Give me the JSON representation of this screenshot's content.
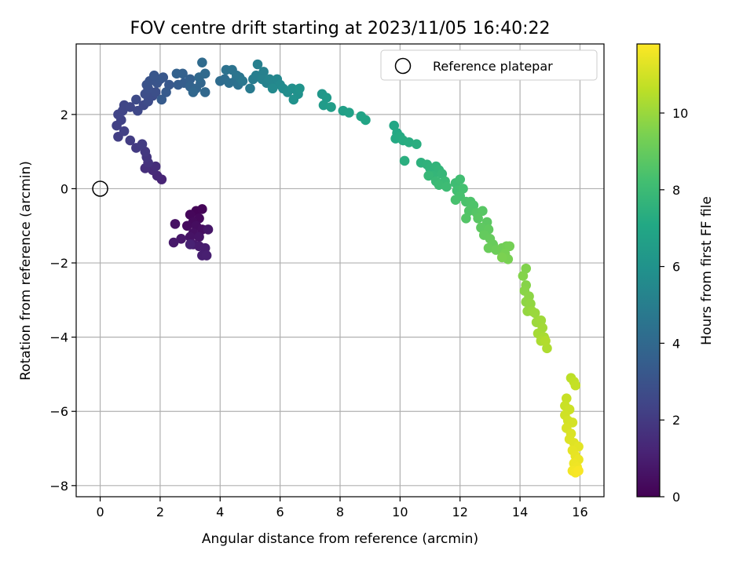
{
  "chart_data": {
    "type": "scatter",
    "title": "FOV centre drift starting at 2023/11/05 16:40:22",
    "xlabel": "Angular distance from reference (arcmin)",
    "ylabel": "Rotation from reference (arcmin)",
    "xlim": [
      -0.8,
      16.8
    ],
    "ylim": [
      -8.3,
      3.9
    ],
    "xticks": [
      0,
      2,
      4,
      6,
      8,
      10,
      12,
      14,
      16
    ],
    "yticks": [
      -8,
      -6,
      -4,
      -2,
      0,
      2
    ],
    "grid": true,
    "legend": {
      "position": "top-right",
      "entries": [
        {
          "label": "Reference platepar",
          "marker": "open-circle"
        }
      ]
    },
    "reference_point": {
      "x": 0,
      "y": 0
    },
    "colorbar": {
      "label": "Hours from first FF file",
      "colormap": "viridis",
      "range": [
        0,
        11.8
      ],
      "ticks": [
        0,
        2,
        4,
        6,
        8,
        10
      ]
    },
    "points": [
      {
        "x": 3.2,
        "y": -0.6,
        "t": 0.1
      },
      {
        "x": 3.4,
        "y": -0.55,
        "t": 0.15
      },
      {
        "x": 3.0,
        "y": -0.7,
        "t": 0.2
      },
      {
        "x": 3.3,
        "y": -0.8,
        "t": 0.25
      },
      {
        "x": 3.1,
        "y": -0.9,
        "t": 0.3
      },
      {
        "x": 2.9,
        "y": -1.0,
        "t": 0.35
      },
      {
        "x": 3.2,
        "y": -1.0,
        "t": 0.4
      },
      {
        "x": 3.4,
        "y": -1.1,
        "t": 0.45
      },
      {
        "x": 3.1,
        "y": -1.2,
        "t": 0.5
      },
      {
        "x": 2.5,
        "y": -0.95,
        "t": 0.55
      },
      {
        "x": 3.0,
        "y": -1.3,
        "t": 0.6
      },
      {
        "x": 3.3,
        "y": -1.3,
        "t": 0.65
      },
      {
        "x": 3.6,
        "y": -1.1,
        "t": 0.7
      },
      {
        "x": 2.7,
        "y": -1.35,
        "t": 0.75
      },
      {
        "x": 2.45,
        "y": -1.45,
        "t": 0.8
      },
      {
        "x": 3.1,
        "y": -1.5,
        "t": 0.85
      },
      {
        "x": 3.3,
        "y": -1.55,
        "t": 0.9
      },
      {
        "x": 3.5,
        "y": -1.6,
        "t": 0.95
      },
      {
        "x": 3.4,
        "y": -1.8,
        "t": 1.0
      },
      {
        "x": 3.55,
        "y": -1.8,
        "t": 1.05
      },
      {
        "x": 3.0,
        "y": -1.5,
        "t": 1.1
      },
      {
        "x": 2.05,
        "y": 0.25,
        "t": 1.2
      },
      {
        "x": 1.9,
        "y": 0.35,
        "t": 1.3
      },
      {
        "x": 1.75,
        "y": 0.5,
        "t": 1.4
      },
      {
        "x": 1.85,
        "y": 0.6,
        "t": 1.5
      },
      {
        "x": 1.5,
        "y": 0.55,
        "t": 1.6
      },
      {
        "x": 1.6,
        "y": 0.7,
        "t": 1.7
      },
      {
        "x": 1.55,
        "y": 0.85,
        "t": 1.8
      },
      {
        "x": 1.5,
        "y": 1.0,
        "t": 1.9
      },
      {
        "x": 1.2,
        "y": 1.1,
        "t": 2.0
      },
      {
        "x": 1.4,
        "y": 1.2,
        "t": 2.05
      },
      {
        "x": 1.0,
        "y": 1.3,
        "t": 2.1
      },
      {
        "x": 0.6,
        "y": 1.4,
        "t": 2.15
      },
      {
        "x": 0.8,
        "y": 1.55,
        "t": 2.2
      },
      {
        "x": 0.55,
        "y": 1.7,
        "t": 2.25
      },
      {
        "x": 0.7,
        "y": 1.85,
        "t": 2.3
      },
      {
        "x": 0.6,
        "y": 2.0,
        "t": 2.35
      },
      {
        "x": 0.75,
        "y": 2.1,
        "t": 2.4
      },
      {
        "x": 0.8,
        "y": 2.25,
        "t": 2.45
      },
      {
        "x": 1.0,
        "y": 2.2,
        "t": 2.5
      },
      {
        "x": 1.25,
        "y": 2.1,
        "t": 2.55
      },
      {
        "x": 1.45,
        "y": 2.25,
        "t": 2.6
      },
      {
        "x": 1.2,
        "y": 2.4,
        "t": 2.65
      },
      {
        "x": 1.6,
        "y": 2.35,
        "t": 2.7
      },
      {
        "x": 1.75,
        "y": 2.5,
        "t": 2.75
      },
      {
        "x": 1.5,
        "y": 2.55,
        "t": 2.8
      },
      {
        "x": 1.85,
        "y": 2.6,
        "t": 2.85
      },
      {
        "x": 1.6,
        "y": 2.7,
        "t": 2.9
      },
      {
        "x": 1.55,
        "y": 2.8,
        "t": 2.95
      },
      {
        "x": 1.65,
        "y": 2.9,
        "t": 3.0
      },
      {
        "x": 1.9,
        "y": 2.85,
        "t": 3.05
      },
      {
        "x": 2.0,
        "y": 2.95,
        "t": 3.1
      },
      {
        "x": 1.8,
        "y": 3.05,
        "t": 3.15
      },
      {
        "x": 2.1,
        "y": 3.0,
        "t": 3.2
      },
      {
        "x": 2.3,
        "y": 2.8,
        "t": 3.25
      },
      {
        "x": 2.2,
        "y": 2.6,
        "t": 3.3
      },
      {
        "x": 2.05,
        "y": 2.4,
        "t": 3.35
      },
      {
        "x": 2.6,
        "y": 2.8,
        "t": 3.4
      },
      {
        "x": 2.8,
        "y": 2.85,
        "t": 3.5
      },
      {
        "x": 3.0,
        "y": 2.95,
        "t": 3.6
      },
      {
        "x": 2.75,
        "y": 3.1,
        "t": 3.65
      },
      {
        "x": 2.55,
        "y": 3.1,
        "t": 3.7
      },
      {
        "x": 3.0,
        "y": 2.75,
        "t": 3.75
      },
      {
        "x": 3.2,
        "y": 2.7,
        "t": 3.8
      },
      {
        "x": 3.35,
        "y": 2.85,
        "t": 3.85
      },
      {
        "x": 3.1,
        "y": 2.6,
        "t": 3.9
      },
      {
        "x": 3.5,
        "y": 2.6,
        "t": 3.95
      },
      {
        "x": 3.3,
        "y": 3.0,
        "t": 4.0
      },
      {
        "x": 3.5,
        "y": 3.1,
        "t": 4.05
      },
      {
        "x": 3.4,
        "y": 3.4,
        "t": 4.1
      },
      {
        "x": 4.0,
        "y": 2.9,
        "t": 4.15
      },
      {
        "x": 4.15,
        "y": 2.95,
        "t": 4.2
      },
      {
        "x": 4.3,
        "y": 2.85,
        "t": 4.3
      },
      {
        "x": 4.5,
        "y": 2.9,
        "t": 4.35
      },
      {
        "x": 4.6,
        "y": 2.8,
        "t": 4.4
      },
      {
        "x": 4.2,
        "y": 3.2,
        "t": 4.45
      },
      {
        "x": 4.4,
        "y": 3.2,
        "t": 4.5
      },
      {
        "x": 4.55,
        "y": 3.05,
        "t": 4.55
      },
      {
        "x": 4.65,
        "y": 3.0,
        "t": 4.6
      },
      {
        "x": 4.75,
        "y": 2.9,
        "t": 4.65
      },
      {
        "x": 5.0,
        "y": 2.7,
        "t": 4.8
      },
      {
        "x": 5.1,
        "y": 2.95,
        "t": 4.9
      },
      {
        "x": 5.2,
        "y": 3.05,
        "t": 5.0
      },
      {
        "x": 5.25,
        "y": 3.35,
        "t": 5.05
      },
      {
        "x": 5.45,
        "y": 3.15,
        "t": 5.1
      },
      {
        "x": 5.4,
        "y": 2.95,
        "t": 5.15
      },
      {
        "x": 5.55,
        "y": 2.85,
        "t": 5.2
      },
      {
        "x": 5.65,
        "y": 2.95,
        "t": 5.3
      },
      {
        "x": 5.8,
        "y": 2.9,
        "t": 5.4
      },
      {
        "x": 5.9,
        "y": 2.95,
        "t": 5.45
      },
      {
        "x": 6.0,
        "y": 2.8,
        "t": 5.5
      },
      {
        "x": 5.75,
        "y": 2.7,
        "t": 5.55
      },
      {
        "x": 6.1,
        "y": 2.7,
        "t": 5.6
      },
      {
        "x": 6.25,
        "y": 2.6,
        "t": 5.7
      },
      {
        "x": 6.4,
        "y": 2.7,
        "t": 5.8
      },
      {
        "x": 6.55,
        "y": 2.65,
        "t": 5.85
      },
      {
        "x": 6.6,
        "y": 2.55,
        "t": 5.9
      },
      {
        "x": 6.45,
        "y": 2.4,
        "t": 5.95
      },
      {
        "x": 6.65,
        "y": 2.7,
        "t": 6.0
      },
      {
        "x": 7.4,
        "y": 2.55,
        "t": 6.2
      },
      {
        "x": 7.55,
        "y": 2.45,
        "t": 6.3
      },
      {
        "x": 7.45,
        "y": 2.25,
        "t": 6.4
      },
      {
        "x": 7.7,
        "y": 2.2,
        "t": 6.5
      },
      {
        "x": 8.1,
        "y": 2.1,
        "t": 6.6
      },
      {
        "x": 8.3,
        "y": 2.05,
        "t": 6.7
      },
      {
        "x": 8.7,
        "y": 1.95,
        "t": 6.8
      },
      {
        "x": 8.85,
        "y": 1.85,
        "t": 6.9
      },
      {
        "x": 9.8,
        "y": 1.7,
        "t": 7.0
      },
      {
        "x": 9.9,
        "y": 1.5,
        "t": 7.1
      },
      {
        "x": 9.85,
        "y": 1.35,
        "t": 7.15
      },
      {
        "x": 10.0,
        "y": 1.4,
        "t": 7.2
      },
      {
        "x": 10.1,
        "y": 1.3,
        "t": 7.25
      },
      {
        "x": 10.3,
        "y": 1.25,
        "t": 7.3
      },
      {
        "x": 10.55,
        "y": 1.2,
        "t": 7.35
      },
      {
        "x": 10.15,
        "y": 0.75,
        "t": 7.4
      },
      {
        "x": 10.7,
        "y": 0.7,
        "t": 7.5
      },
      {
        "x": 10.9,
        "y": 0.65,
        "t": 7.55
      },
      {
        "x": 11.0,
        "y": 0.55,
        "t": 7.6
      },
      {
        "x": 11.2,
        "y": 0.6,
        "t": 7.65
      },
      {
        "x": 11.3,
        "y": 0.5,
        "t": 7.7
      },
      {
        "x": 11.1,
        "y": 0.35,
        "t": 7.75
      },
      {
        "x": 11.4,
        "y": 0.4,
        "t": 7.8
      },
      {
        "x": 10.95,
        "y": 0.35,
        "t": 7.85
      },
      {
        "x": 11.2,
        "y": 0.2,
        "t": 7.9
      },
      {
        "x": 11.5,
        "y": 0.2,
        "t": 7.95
      },
      {
        "x": 11.3,
        "y": 0.1,
        "t": 8.0
      },
      {
        "x": 11.55,
        "y": 0.05,
        "t": 8.05
      },
      {
        "x": 11.85,
        "y": 0.15,
        "t": 8.1
      },
      {
        "x": 12.0,
        "y": 0.25,
        "t": 8.15
      },
      {
        "x": 11.9,
        "y": -0.05,
        "t": 8.2
      },
      {
        "x": 12.1,
        "y": 0.0,
        "t": 8.25
      },
      {
        "x": 12.0,
        "y": -0.2,
        "t": 8.3
      },
      {
        "x": 11.85,
        "y": -0.3,
        "t": 8.35
      },
      {
        "x": 12.2,
        "y": -0.35,
        "t": 8.4
      },
      {
        "x": 12.35,
        "y": -0.35,
        "t": 8.45
      },
      {
        "x": 12.45,
        "y": -0.45,
        "t": 8.5
      },
      {
        "x": 12.3,
        "y": -0.6,
        "t": 8.55
      },
      {
        "x": 12.2,
        "y": -0.8,
        "t": 8.6
      },
      {
        "x": 12.55,
        "y": -0.65,
        "t": 8.65
      },
      {
        "x": 12.75,
        "y": -0.6,
        "t": 8.7
      },
      {
        "x": 12.6,
        "y": -0.8,
        "t": 8.75
      },
      {
        "x": 12.9,
        "y": -0.9,
        "t": 8.8
      },
      {
        "x": 12.7,
        "y": -1.05,
        "t": 8.85
      },
      {
        "x": 12.95,
        "y": -1.1,
        "t": 8.9
      },
      {
        "x": 12.8,
        "y": -1.25,
        "t": 8.95
      },
      {
        "x": 13.0,
        "y": -1.35,
        "t": 9.0
      },
      {
        "x": 13.1,
        "y": -1.5,
        "t": 9.05
      },
      {
        "x": 12.95,
        "y": -1.6,
        "t": 9.1
      },
      {
        "x": 13.2,
        "y": -1.65,
        "t": 9.15
      },
      {
        "x": 13.4,
        "y": -1.6,
        "t": 9.2
      },
      {
        "x": 13.55,
        "y": -1.55,
        "t": 9.25
      },
      {
        "x": 13.65,
        "y": -1.55,
        "t": 9.3
      },
      {
        "x": 13.5,
        "y": -1.75,
        "t": 9.35
      },
      {
        "x": 13.6,
        "y": -1.9,
        "t": 9.4
      },
      {
        "x": 13.4,
        "y": -1.85,
        "t": 9.45
      },
      {
        "x": 14.2,
        "y": -2.15,
        "t": 9.55
      },
      {
        "x": 14.1,
        "y": -2.35,
        "t": 9.6
      },
      {
        "x": 14.2,
        "y": -2.6,
        "t": 9.65
      },
      {
        "x": 14.15,
        "y": -2.75,
        "t": 9.7
      },
      {
        "x": 14.3,
        "y": -2.9,
        "t": 9.75
      },
      {
        "x": 14.2,
        "y": -3.05,
        "t": 9.8
      },
      {
        "x": 14.35,
        "y": -3.1,
        "t": 9.85
      },
      {
        "x": 14.25,
        "y": -3.3,
        "t": 9.9
      },
      {
        "x": 14.4,
        "y": -3.3,
        "t": 9.95
      },
      {
        "x": 14.5,
        "y": -3.35,
        "t": 10.0
      },
      {
        "x": 14.55,
        "y": -3.6,
        "t": 10.05
      },
      {
        "x": 14.7,
        "y": -3.55,
        "t": 10.1
      },
      {
        "x": 14.75,
        "y": -3.75,
        "t": 10.15
      },
      {
        "x": 14.6,
        "y": -3.9,
        "t": 10.2
      },
      {
        "x": 14.8,
        "y": -4.0,
        "t": 10.25
      },
      {
        "x": 14.7,
        "y": -4.1,
        "t": 10.3
      },
      {
        "x": 14.9,
        "y": -4.3,
        "t": 10.35
      },
      {
        "x": 14.85,
        "y": -4.1,
        "t": 10.4
      },
      {
        "x": 15.7,
        "y": -5.1,
        "t": 10.6
      },
      {
        "x": 15.8,
        "y": -5.2,
        "t": 10.7
      },
      {
        "x": 15.85,
        "y": -5.3,
        "t": 10.75
      },
      {
        "x": 15.55,
        "y": -5.65,
        "t": 10.8
      },
      {
        "x": 15.5,
        "y": -5.85,
        "t": 10.85
      },
      {
        "x": 15.65,
        "y": -5.95,
        "t": 10.9
      },
      {
        "x": 15.5,
        "y": -6.1,
        "t": 10.95
      },
      {
        "x": 15.6,
        "y": -6.25,
        "t": 11.0
      },
      {
        "x": 15.75,
        "y": -6.3,
        "t": 11.05
      },
      {
        "x": 15.55,
        "y": -6.45,
        "t": 11.1
      },
      {
        "x": 15.7,
        "y": -6.6,
        "t": 11.15
      },
      {
        "x": 15.65,
        "y": -6.75,
        "t": 11.2
      },
      {
        "x": 15.8,
        "y": -6.85,
        "t": 11.25
      },
      {
        "x": 15.95,
        "y": -6.95,
        "t": 11.3
      },
      {
        "x": 15.75,
        "y": -7.05,
        "t": 11.35
      },
      {
        "x": 15.85,
        "y": -7.2,
        "t": 11.4
      },
      {
        "x": 15.95,
        "y": -7.3,
        "t": 11.45
      },
      {
        "x": 15.8,
        "y": -7.4,
        "t": 11.5
      },
      {
        "x": 15.9,
        "y": -7.5,
        "t": 11.55
      },
      {
        "x": 15.75,
        "y": -7.6,
        "t": 11.6
      },
      {
        "x": 15.85,
        "y": -7.65,
        "t": 11.65
      },
      {
        "x": 15.95,
        "y": -7.6,
        "t": 11.7
      }
    ]
  }
}
